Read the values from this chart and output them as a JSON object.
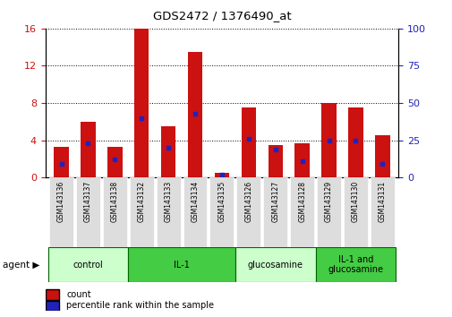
{
  "title": "GDS2472 / 1376490_at",
  "categories": [
    "GSM143136",
    "GSM143137",
    "GSM143138",
    "GSM143132",
    "GSM143133",
    "GSM143134",
    "GSM143135",
    "GSM143126",
    "GSM143127",
    "GSM143128",
    "GSM143129",
    "GSM143130",
    "GSM143131"
  ],
  "count_values": [
    3.3,
    6.0,
    3.3,
    16.0,
    5.5,
    13.5,
    0.5,
    7.5,
    3.5,
    3.7,
    8.0,
    7.5,
    4.5
  ],
  "percentile_values_pct": [
    9,
    23,
    12,
    40,
    20,
    43,
    2,
    26,
    19,
    11,
    25,
    25,
    9
  ],
  "groups": [
    {
      "label": "control",
      "start": 0,
      "end": 3,
      "color": "#ccffcc"
    },
    {
      "label": "IL-1",
      "start": 3,
      "end": 7,
      "color": "#44cc44"
    },
    {
      "label": "glucosamine",
      "start": 7,
      "end": 10,
      "color": "#ccffcc"
    },
    {
      "label": "IL-1 and\nglucosamine",
      "start": 10,
      "end": 13,
      "color": "#44cc44"
    }
  ],
  "ylim_left": [
    0,
    16
  ],
  "ylim_right": [
    0,
    100
  ],
  "yticks_left": [
    0,
    4,
    8,
    12,
    16
  ],
  "yticks_right": [
    0,
    25,
    50,
    75,
    100
  ],
  "bar_color": "#cc1111",
  "dot_color": "#2222bb",
  "bar_width": 0.55,
  "agent_label": "agent",
  "legend_count": "count",
  "legend_pct": "percentile rank within the sample",
  "tick_color_left": "#cc1111",
  "tick_color_right": "#2222bb",
  "grid_color": "#000000",
  "xtick_bg": "#dddddd"
}
